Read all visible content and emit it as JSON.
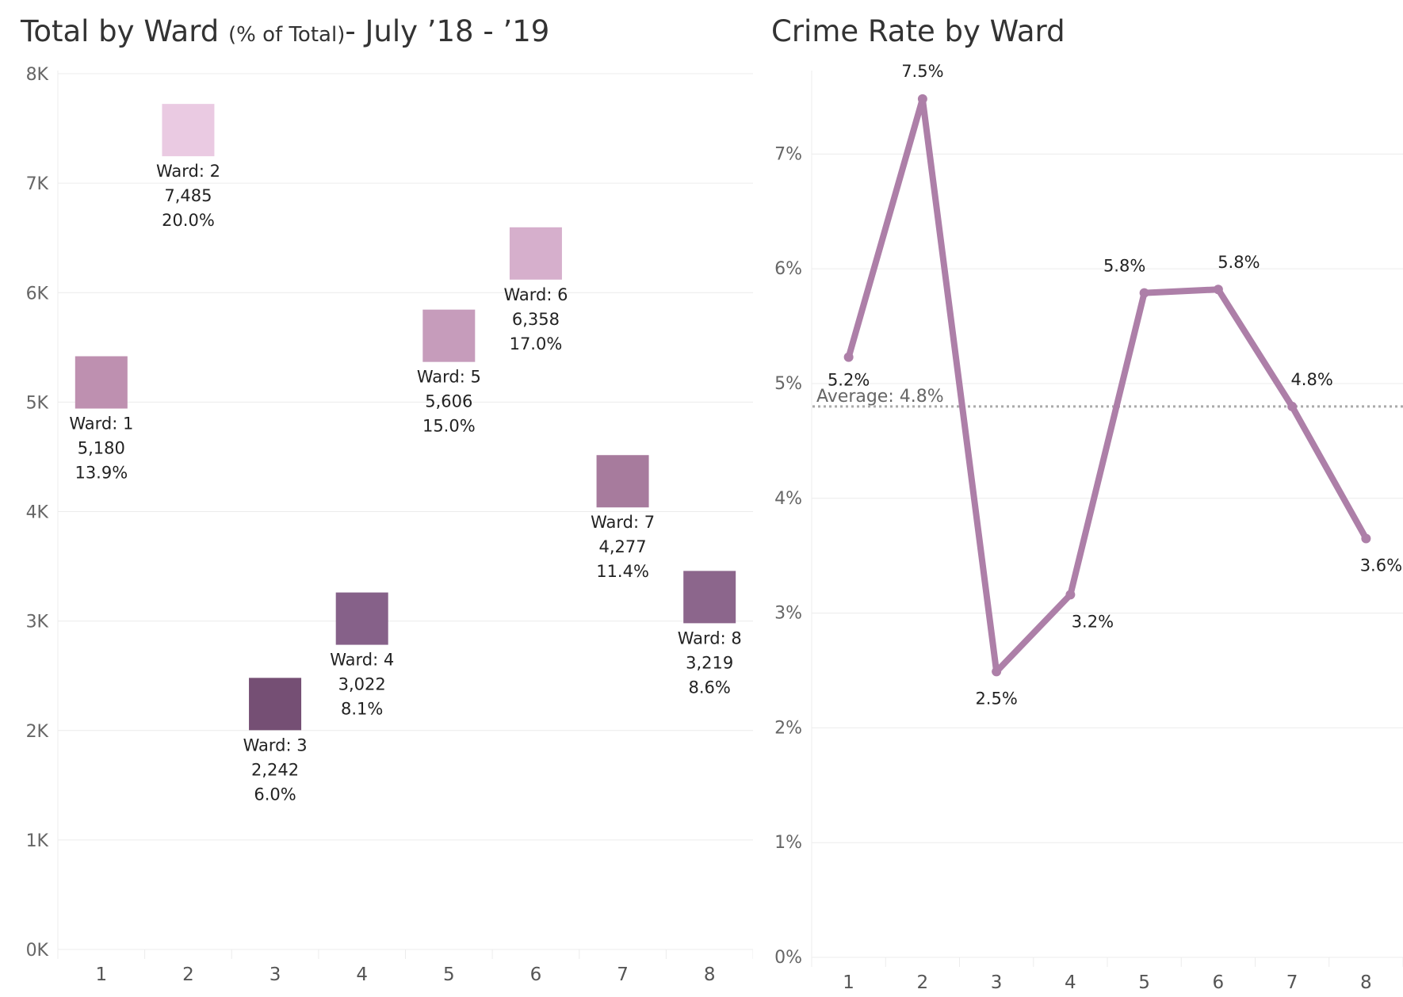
{
  "left_title": {
    "main": "Total by Ward",
    "small": "(% of Total)",
    "rest": "- July ’18 - ’19"
  },
  "right_title": "Crime Rate by Ward",
  "colors": {
    "grid": "#ececec",
    "line": "#ad7fa8",
    "average_line": "#aaaaaa"
  },
  "chart_data": [
    {
      "type": "scatter",
      "title": "Total by Ward (% of Total)- July ’18 - ’19",
      "marker": "square",
      "categories": [
        "1",
        "2",
        "3",
        "4",
        "5",
        "6",
        "7",
        "8"
      ],
      "ylim": [
        0,
        8000
      ],
      "yticks": [
        0,
        1000,
        2000,
        3000,
        4000,
        5000,
        6000,
        7000,
        8000
      ],
      "ytick_labels": [
        "0K",
        "1K",
        "2K",
        "3K",
        "4K",
        "5K",
        "6K",
        "7K",
        "8K"
      ],
      "grid": true,
      "points": [
        {
          "ward": "1",
          "value": 5180,
          "label_ward": "Ward: 1",
          "label_value": "5,180",
          "label_pct": "13.9%",
          "color": "#be90b0"
        },
        {
          "ward": "2",
          "value": 7485,
          "label_ward": "Ward: 2",
          "label_value": "7,485",
          "label_pct": "20.0%",
          "color": "#eacae2"
        },
        {
          "ward": "3",
          "value": 2242,
          "label_ward": "Ward: 3",
          "label_value": "2,242",
          "label_pct": "6.0%",
          "color": "#754f74"
        },
        {
          "ward": "4",
          "value": 3022,
          "label_ward": "Ward: 4",
          "label_value": "3,022",
          "label_pct": "8.1%",
          "color": "#866189"
        },
        {
          "ward": "5",
          "value": 5606,
          "label_ward": "Ward: 5",
          "label_value": "5,606",
          "label_pct": "15.0%",
          "color": "#c69cbb"
        },
        {
          "ward": "6",
          "value": 6358,
          "label_ward": "Ward: 6",
          "label_value": "6,358",
          "label_pct": "17.0%",
          "color": "#d6afcc"
        },
        {
          "ward": "7",
          "value": 4277,
          "label_ward": "Ward: 7",
          "label_value": "4,277",
          "label_pct": "11.4%",
          "color": "#a77b9d"
        },
        {
          "ward": "8",
          "value": 3219,
          "label_ward": "Ward: 8",
          "label_value": "3,219",
          "label_pct": "8.6%",
          "color": "#8c668c"
        }
      ]
    },
    {
      "type": "line",
      "title": "Crime Rate by Ward",
      "x": [
        "1",
        "2",
        "3",
        "4",
        "5",
        "6",
        "7",
        "8"
      ],
      "values": [
        5.23,
        7.48,
        2.49,
        3.16,
        5.79,
        5.82,
        4.8,
        3.65
      ],
      "point_labels": [
        "5.2%",
        "7.5%",
        "2.5%",
        "3.2%",
        "5.8%",
        "5.8%",
        "4.8%",
        "3.6%"
      ],
      "ylim": [
        0,
        7.7
      ],
      "yticks": [
        0,
        1,
        2,
        3,
        4,
        5,
        6,
        7
      ],
      "ytick_labels": [
        "0%",
        "1%",
        "2%",
        "3%",
        "4%",
        "5%",
        "6%",
        "7%"
      ],
      "grid": true,
      "reference_line": {
        "value": 4.8,
        "label": "Average: 4.8%",
        "style": "dotted"
      }
    }
  ]
}
